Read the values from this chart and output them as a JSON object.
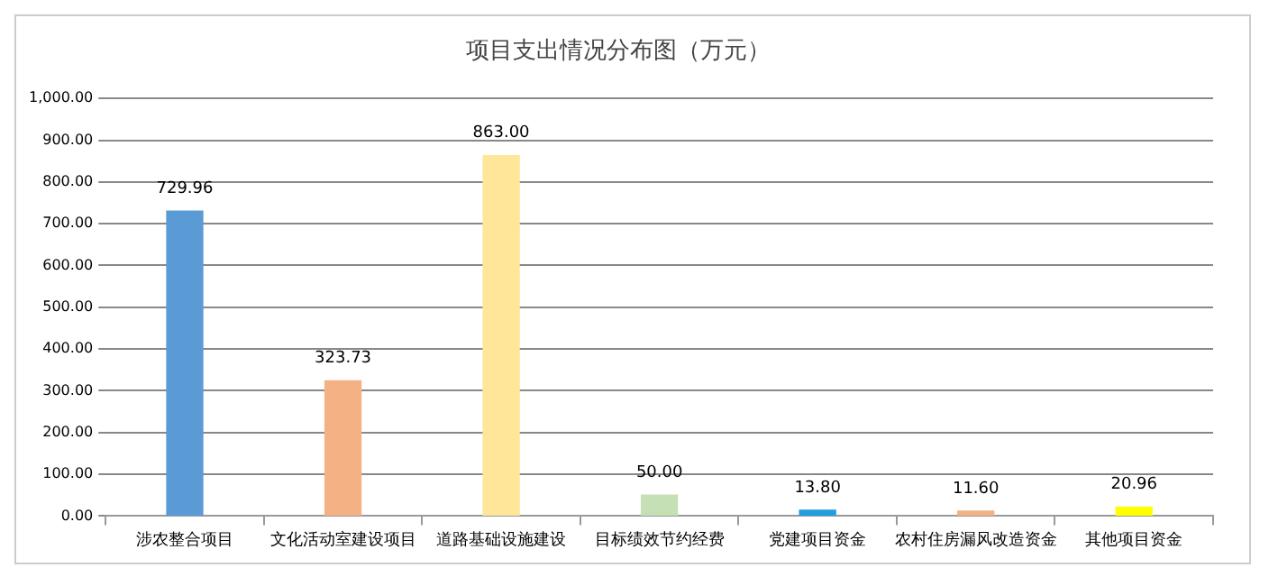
{
  "chart_data": {
    "type": "bar",
    "title": "项目支出情况分布图（万元）",
    "categories": [
      "涉农整合项目",
      "文化活动室建设项目",
      "道路基础设施建设",
      "目标绩效节约经费",
      "党建项目资金",
      "农村住房漏风改造资金",
      "其他项目资金"
    ],
    "values": [
      729.96,
      323.73,
      863.0,
      50.0,
      13.8,
      11.6,
      20.96
    ],
    "colors": [
      "#5b9bd5",
      "#f4b183",
      "#ffe699",
      "#c5e0b4",
      "#1f9ee0",
      "#f4b183",
      "#ffff00"
    ],
    "ylim": [
      0,
      1000
    ],
    "yticks": [
      {
        "value": 0,
        "label": "0.00"
      },
      {
        "value": 100,
        "label": "100.00"
      },
      {
        "value": 200,
        "label": "200.00"
      },
      {
        "value": 300,
        "label": "300.00"
      },
      {
        "value": 400,
        "label": "400.00"
      },
      {
        "value": 500,
        "label": "500.00"
      },
      {
        "value": 600,
        "label": "600.00"
      },
      {
        "value": 700,
        "label": "700.00"
      },
      {
        "value": 800,
        "label": "800.00"
      },
      {
        "value": 900,
        "label": "900.00"
      },
      {
        "value": 1000,
        "label": "1,000.00"
      }
    ],
    "value_labels": [
      "729.96",
      "323.73",
      "863.00",
      "50.00",
      "13.80",
      "11.60",
      "20.96"
    ],
    "grid": "y",
    "legend": false
  }
}
